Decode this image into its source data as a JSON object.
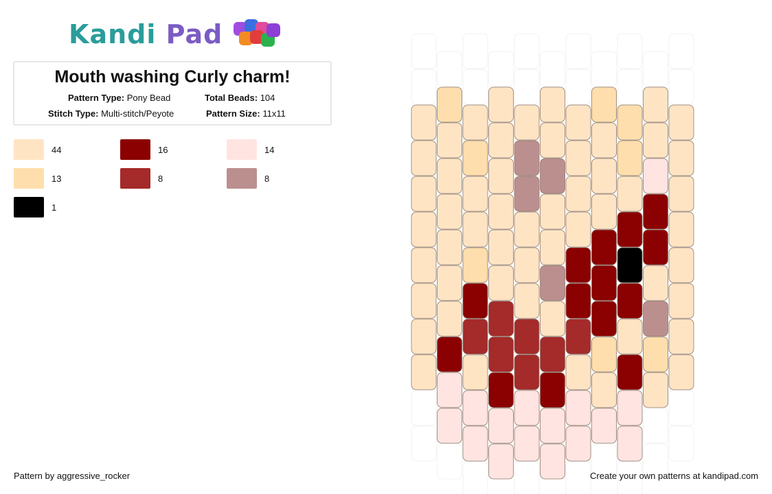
{
  "logo": {
    "text_kandi": "Kandi",
    "text_pad": "Pad"
  },
  "pattern": {
    "title": "Mouth washing Curly charm!",
    "pattern_type_label": "Pattern Type:",
    "pattern_type": "Pony Bead",
    "total_beads_label": "Total Beads:",
    "total_beads": "104",
    "stitch_type_label": "Stitch Type:",
    "stitch_type": "Multi-stitch/Peyote",
    "pattern_size_label": "Pattern Size:",
    "pattern_size": "11x11"
  },
  "legend": [
    {
      "color": "#FFE4C4",
      "count": "44"
    },
    {
      "color": "#8B0000",
      "count": "16"
    },
    {
      "color": "#FFE4E1",
      "count": "14"
    },
    {
      "color": "#FFDEAD",
      "count": "13"
    },
    {
      "color": "#A52A2A",
      "count": "8"
    },
    {
      "color": "#BC8F8F",
      "count": "8"
    },
    {
      "color": "#000000",
      "count": "1"
    }
  ],
  "grid": {
    "palette": {
      "b": "#FFE4C4",
      "n": "#FFDEAD",
      "p": "#FFE4E1",
      "r": "#8B0000",
      "a": "#A52A2A",
      "m": "#BC8F8F",
      "k": "#000000",
      ".": "#FFFFFF"
    },
    "columns": [
      "..bbbbbbbb..",
      ".nbbbbbbrpp.",
      "..bnbbnrabpp.",
      ".bbbbbbaarpp",
      "..bmmbbbaapp.",
      ".bbmbbmbarpp",
      "..bbbbrrabpp.",
      ".nbbbrrrnbp.",
      "..nnbrkrbrpp.",
      ".bbprrbmnb..",
      "..bbbbbbbb.."
    ]
  },
  "footer": {
    "credit": "Pattern by aggressive_rocker",
    "cta": "Create your own patterns at kandipad.com"
  }
}
